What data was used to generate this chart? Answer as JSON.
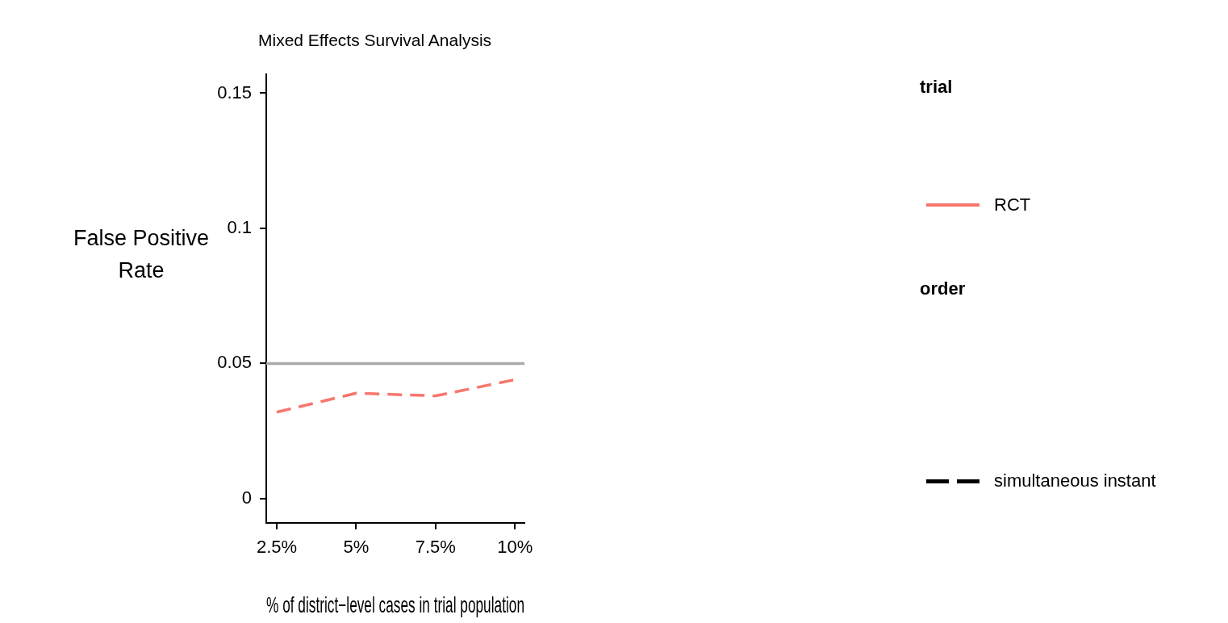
{
  "chart_data": {
    "type": "line",
    "title": "Mixed Effects Survival Analysis",
    "xlabel": "% of district−level cases in trial population",
    "ylabel": "False Positive Rate",
    "x": [
      2.5,
      5,
      7.5,
      10
    ],
    "series": [
      {
        "name": "RCT",
        "color": "#f8766d",
        "values": [
          0.032,
          0.039,
          0.038,
          0.044
        ],
        "line_style": "dashed"
      }
    ],
    "xlim": [
      2.17,
      10.3
    ],
    "xticks": [
      {
        "value": 2.5,
        "label": "2.5%"
      },
      {
        "value": 5,
        "label": "5%"
      },
      {
        "value": 7.5,
        "label": "7.5%"
      },
      {
        "value": 10,
        "label": "10%"
      }
    ],
    "ylim": [
      -0.009,
      0.157
    ],
    "yticks": [
      0,
      0.05,
      0.1,
      0.15
    ],
    "ref_lines": [
      {
        "axis": "y",
        "value": 0.05,
        "color": "#aaaaaa"
      }
    ],
    "legend": "right",
    "legend_title": "trial",
    "annotations": [
      "order",
      "simultaneous instant"
    ],
    "grid": false,
    "marker": "none"
  }
}
